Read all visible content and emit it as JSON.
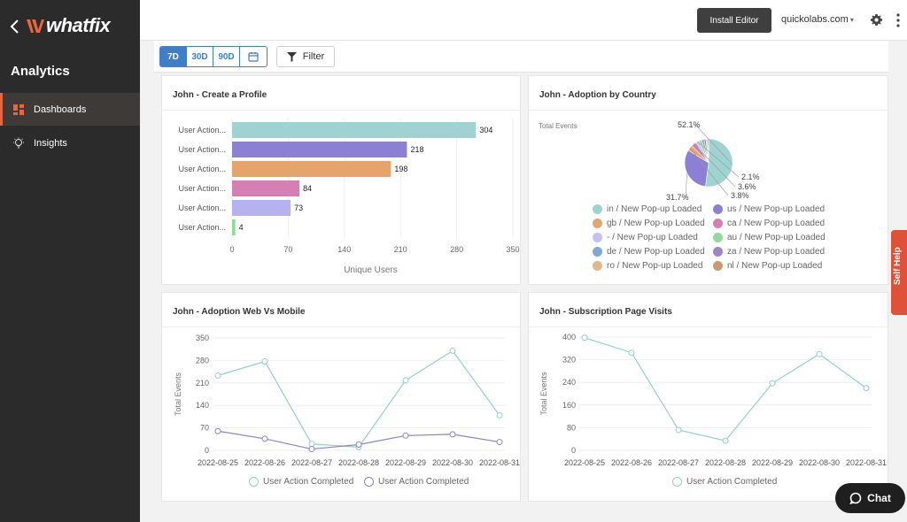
{
  "brand": {
    "name": "whatfix",
    "accent": "#e8663d"
  },
  "sidebar": {
    "title": "Analytics",
    "items": [
      {
        "label": "Dashboards",
        "icon": "dashboard-icon",
        "active": true
      },
      {
        "label": "Insights",
        "icon": "lightbulb-icon",
        "active": false
      }
    ]
  },
  "topbar": {
    "install_label": "Install Editor",
    "account_label": "quickolabs.com"
  },
  "toolbar": {
    "ranges": [
      "7D",
      "30D",
      "90D"
    ],
    "active_range": "7D",
    "filter_label": "Filter"
  },
  "cards": {
    "profile": {
      "title": "John - Create a Profile"
    },
    "country": {
      "title": "John - Adoption by Country"
    },
    "web_mobile": {
      "title": "John - Adoption Web Vs Mobile"
    },
    "subscription": {
      "title": "John - Subscription Page Visits"
    }
  },
  "self_help_label": "Self Help",
  "chat_label": "Chat",
  "chart_data": [
    {
      "type": "bar",
      "orientation": "horizontal",
      "title": "John - Create a Profile",
      "categories": [
        "User Action...",
        "User Action...",
        "User Action...",
        "User Action...",
        "User Action...",
        "User Action..."
      ],
      "values": [
        304,
        218,
        198,
        84,
        73,
        4
      ],
      "colors": [
        "#9fd3d1",
        "#8b80d3",
        "#e3a56c",
        "#d77fb3",
        "#b6b2f2",
        "#8fdc98"
      ],
      "xlabel": "Unique Users",
      "xticks": [
        0,
        70,
        140,
        210,
        280,
        350
      ],
      "xlim": [
        0,
        350
      ]
    },
    {
      "type": "pie",
      "title": "John - Adoption by Country",
      "ylabel": "Total Events",
      "slice_labels": [
        "52.1%",
        "31.7%",
        "2.1%",
        "3.6%",
        "3.8%"
      ],
      "slices": [
        {
          "label": "in / New Pop-up Loaded",
          "value": 52.1,
          "color": "#9fd3d1"
        },
        {
          "label": "us / New Pop-up Loaded",
          "value": 31.7,
          "color": "#8b80d3"
        },
        {
          "label": "gb / New Pop-up Loaded",
          "value": 3.8,
          "color": "#e3a56c"
        },
        {
          "label": "ca / New Pop-up Loaded",
          "value": 3.6,
          "color": "#d77fb3"
        },
        {
          "label": "- / New Pop-up Loaded",
          "value": 2.1,
          "color": "#c3c0f5"
        },
        {
          "label": "au / New Pop-up Loaded",
          "value": 2.0,
          "color": "#8fdc98"
        },
        {
          "label": "de / New Pop-up Loaded",
          "value": 1.6,
          "color": "#7fa8d8"
        },
        {
          "label": "za / New Pop-up Loaded",
          "value": 1.3,
          "color": "#9c84c9"
        },
        {
          "label": "ro / New Pop-up Loaded",
          "value": 1.0,
          "color": "#e3b889"
        },
        {
          "label": "nl / New Pop-up Loaded",
          "value": 0.8,
          "color": "#c99a70"
        }
      ]
    },
    {
      "type": "line",
      "title": "John - Adoption Web Vs Mobile",
      "ylabel": "Total Events",
      "x": [
        "2022-08-25",
        "2022-08-26",
        "2022-08-27",
        "2022-08-28",
        "2022-08-29",
        "2022-08-30",
        "2022-08-31"
      ],
      "yticks": [
        0,
        70,
        140,
        210,
        280,
        350
      ],
      "ylim": [
        0,
        350
      ],
      "series": [
        {
          "name": "User Action Completed",
          "color": "#8fd0cc",
          "values": [
            233,
            277,
            20,
            10,
            218,
            310,
            109
          ]
        },
        {
          "name": "User Action Completed",
          "color": "#8b80d3",
          "values": [
            60,
            36,
            4,
            18,
            46,
            50,
            26
          ]
        }
      ]
    },
    {
      "type": "line",
      "title": "John - Subscription Page Visits",
      "ylabel": "Total Events",
      "x": [
        "2022-08-25",
        "2022-08-26",
        "2022-08-27",
        "2022-08-28",
        "2022-08-29",
        "2022-08-30",
        "2022-08-31"
      ],
      "yticks": [
        0,
        80,
        160,
        240,
        320,
        400
      ],
      "ylim": [
        0,
        400
      ],
      "series": [
        {
          "name": "User Action Completed",
          "color": "#8fd0cc",
          "values": [
            398,
            345,
            72,
            34,
            237,
            340,
            220
          ]
        }
      ]
    }
  ]
}
